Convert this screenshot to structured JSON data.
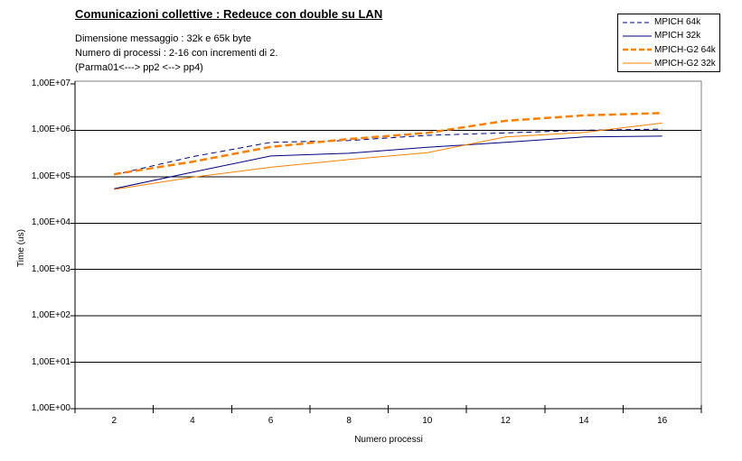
{
  "title": "Comunicazioni collettive : Redeuce con double su LAN",
  "subtitle_lines": [
    "Dimensione messaggio : 32k e 65k byte",
    "Numero di processi : 2-16 con incrementi di 2.",
    "(Parma01<---> pp2 <--> pp4)"
  ],
  "axes": {
    "y_label": "Time (us)",
    "x_label": "Numero processi",
    "y_tick_labels": [
      "1,00E+00",
      "1,00E+01",
      "1,00E+02",
      "1,00E+03",
      "1,00E+04",
      "1,00E+05",
      "1,00E+06",
      "1,00E+07"
    ],
    "x_tick_labels": [
      "2",
      "4",
      "6",
      "8",
      "10",
      "12",
      "14",
      "16"
    ]
  },
  "colors": {
    "navy": "#000080",
    "orange": "#ff8000",
    "plot_border": "#808080",
    "gridline": "#000000"
  },
  "chart_data": {
    "type": "line",
    "x": [
      2,
      4,
      6,
      8,
      10,
      12,
      14,
      16
    ],
    "xlabel": "Numero processi",
    "ylabel": "Time (us)",
    "y_scale": "log",
    "ylim": [
      1,
      10000000
    ],
    "grid": true,
    "legend_position": "top-right",
    "series": [
      {
        "name": "MPICH 64k",
        "color": "#000080",
        "line_style": "dashed",
        "line_width": 1,
        "values": [
          110000,
          270000,
          550000,
          600000,
          780000,
          880000,
          1000000,
          1060000
        ]
      },
      {
        "name": "MPICH 32k",
        "color": "#000080",
        "line_style": "solid",
        "line_width": 1,
        "values": [
          55000,
          125000,
          280000,
          320000,
          430000,
          550000,
          720000,
          750000
        ]
      },
      {
        "name": "MPICH-G2 64k",
        "color": "#ff8000",
        "line_style": "dashed",
        "line_width": 2.5,
        "values": [
          113000,
          210000,
          440000,
          650000,
          880000,
          1600000,
          2100000,
          2350000
        ]
      },
      {
        "name": "MPICH-G2 32k",
        "color": "#ff8000",
        "line_style": "solid",
        "line_width": 1,
        "values": [
          53000,
          97000,
          160000,
          235000,
          330000,
          720000,
          900000,
          1430000
        ]
      }
    ]
  }
}
